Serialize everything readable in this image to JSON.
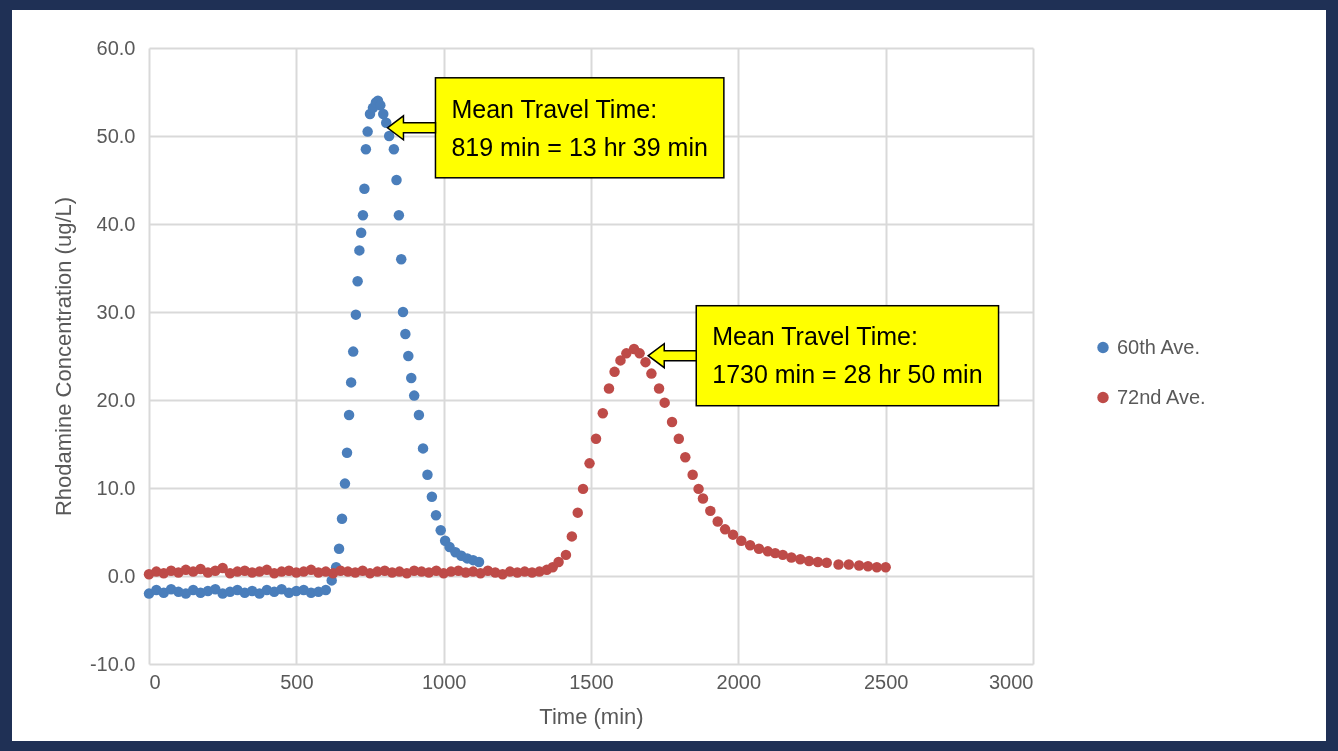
{
  "chart_data": {
    "type": "scatter",
    "xlabel": "Time (min)",
    "ylabel": "Rhodamine Concentration (ug/L)",
    "xlim": [
      0,
      3000
    ],
    "xticks": [
      0,
      500,
      1000,
      1500,
      2000,
      2500,
      3000
    ],
    "ylim": [
      -10,
      60
    ],
    "yticks": [
      {
        "value": -10,
        "label": "-10.0"
      },
      {
        "value": 0,
        "label": "0.0"
      },
      {
        "value": 10,
        "label": "10.0"
      },
      {
        "value": 20,
        "label": "20.0"
      },
      {
        "value": 30,
        "label": "30.0"
      },
      {
        "value": 40,
        "label": "40.0"
      },
      {
        "value": 50,
        "label": "50.0"
      },
      {
        "value": 60,
        "label": "60.0"
      }
    ],
    "grid": true,
    "legend": "right",
    "marker": "circle",
    "annotations": [
      "Mean Travel Time:\n819 min = 13 hr 39 min",
      "Mean Travel Time:\n1730 min = 28 hr 50 min"
    ],
    "series": [
      {
        "name": "60th Ave.",
        "color": "#4a7ebb",
        "x": [
          0,
          25,
          50,
          75,
          100,
          125,
          150,
          175,
          200,
          225,
          250,
          275,
          300,
          325,
          350,
          375,
          400,
          425,
          450,
          475,
          500,
          525,
          550,
          575,
          600,
          620,
          635,
          645,
          655,
          665,
          672,
          679,
          686,
          693,
          702,
          708,
          714,
          720,
          726,
          731,
          736,
          742,
          750,
          760,
          770,
          777,
          785,
          795,
          805,
          815,
          831,
          840,
          848,
          856,
          862,
          870,
          880,
          890,
          900,
          916,
          930,
          945,
          960,
          974,
          990,
          1005,
          1020,
          1040,
          1060,
          1080,
          1100,
          1120
        ],
        "values": [
          -2.0,
          -1.6,
          -1.9,
          -1.5,
          -1.8,
          -2.0,
          -1.6,
          -1.9,
          -1.7,
          -1.5,
          -2.0,
          -1.8,
          -1.6,
          -1.9,
          -1.7,
          -2.0,
          -1.6,
          -1.8,
          -1.5,
          -1.9,
          -1.7,
          -1.6,
          -1.9,
          -1.8,
          -1.6,
          -0.5,
          1.0,
          3.1,
          6.5,
          10.5,
          14.0,
          18.3,
          22.0,
          25.5,
          29.7,
          33.5,
          37.0,
          39.0,
          41.0,
          44.0,
          48.5,
          50.5,
          52.5,
          53.2,
          53.8,
          54.0,
          53.5,
          52.5,
          51.5,
          50.0,
          48.5,
          45.0,
          41.0,
          36.0,
          30.0,
          27.5,
          25.0,
          22.5,
          20.5,
          18.3,
          14.5,
          11.5,
          9.0,
          6.9,
          5.2,
          4.0,
          3.3,
          2.7,
          2.3,
          2.0,
          1.8,
          1.6
        ]
      },
      {
        "name": "72nd Ave.",
        "color": "#be4b48",
        "x": [
          0,
          25,
          50,
          75,
          100,
          125,
          150,
          175,
          200,
          225,
          250,
          275,
          300,
          325,
          350,
          375,
          400,
          425,
          450,
          475,
          500,
          525,
          550,
          575,
          600,
          625,
          650,
          675,
          700,
          725,
          750,
          775,
          800,
          825,
          850,
          875,
          900,
          925,
          950,
          975,
          1000,
          1025,
          1050,
          1075,
          1100,
          1125,
          1150,
          1175,
          1200,
          1225,
          1250,
          1275,
          1300,
          1325,
          1350,
          1370,
          1390,
          1415,
          1435,
          1455,
          1473,
          1495,
          1517,
          1540,
          1561,
          1580,
          1600,
          1620,
          1646,
          1665,
          1685,
          1705,
          1731,
          1750,
          1775,
          1798,
          1820,
          1845,
          1865,
          1880,
          1905,
          1930,
          1955,
          1982,
          2010,
          2040,
          2070,
          2100,
          2125,
          2151,
          2180,
          2210,
          2240,
          2270,
          2300,
          2340,
          2375,
          2410,
          2440,
          2470,
          2500
        ],
        "values": [
          0.2,
          0.5,
          0.3,
          0.6,
          0.4,
          0.7,
          0.5,
          0.8,
          0.4,
          0.6,
          0.9,
          0.3,
          0.5,
          0.6,
          0.4,
          0.5,
          0.7,
          0.3,
          0.5,
          0.6,
          0.4,
          0.5,
          0.7,
          0.4,
          0.5,
          0.3,
          0.6,
          0.5,
          0.4,
          0.6,
          0.3,
          0.5,
          0.6,
          0.4,
          0.5,
          0.3,
          0.6,
          0.5,
          0.4,
          0.6,
          0.3,
          0.5,
          0.6,
          0.4,
          0.5,
          0.3,
          0.6,
          0.4,
          0.2,
          0.5,
          0.4,
          0.5,
          0.4,
          0.5,
          0.7,
          1.0,
          1.6,
          2.4,
          4.5,
          7.2,
          9.9,
          12.8,
          15.6,
          18.5,
          21.3,
          23.2,
          24.5,
          25.3,
          25.8,
          25.3,
          24.3,
          23.0,
          21.3,
          19.7,
          17.5,
          15.6,
          13.5,
          11.5,
          9.9,
          8.8,
          7.4,
          6.2,
          5.3,
          4.7,
          4.0,
          3.5,
          3.1,
          2.8,
          2.6,
          2.4,
          2.1,
          1.9,
          1.7,
          1.6,
          1.5,
          1.3,
          1.3,
          1.2,
          1.1,
          1.0,
          1.0
        ]
      }
    ]
  }
}
